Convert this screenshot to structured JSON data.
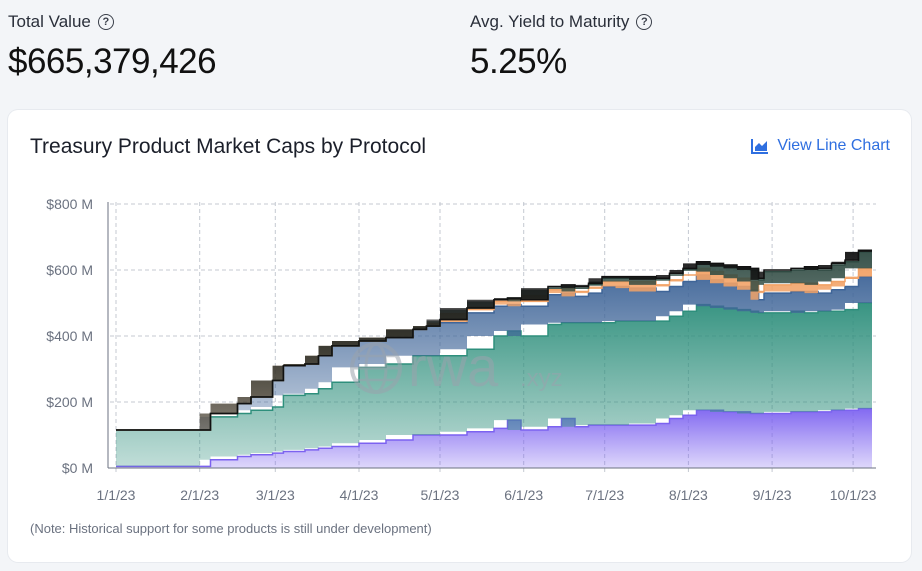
{
  "stats": {
    "total_value_label": "Total Value",
    "total_value": "$665,379,426",
    "yield_label": "Avg. Yield to Maturity",
    "yield_value": "5.25%"
  },
  "card": {
    "title": "Treasury Product Market Caps by Protocol",
    "view_line_label": "View Line Chart",
    "note": "(Note: Historical support for some products is still under development)",
    "watermark_brand": "rwa",
    "watermark_suffix": ".xyz"
  },
  "colors": {
    "accent": "#2f6fe0"
  },
  "chart_data": {
    "type": "area",
    "stacked": true,
    "ylim": [
      0,
      800
    ],
    "y_ticks": [
      0,
      200,
      400,
      600,
      800
    ],
    "y_tick_labels": [
      "$0 M",
      "$200 M",
      "$400 M",
      "$600 M",
      "$800 M"
    ],
    "x_tick_labels": [
      "1/1/23",
      "2/1/23",
      "3/1/23",
      "4/1/23",
      "5/1/23",
      "6/1/23",
      "7/1/23",
      "8/1/23",
      "9/1/23",
      "10/1/23"
    ],
    "x_tick_days": [
      0,
      31,
      59,
      90,
      120,
      151,
      181,
      212,
      243,
      273
    ],
    "x_max_day": 280,
    "grid": true,
    "x": [
      0,
      20,
      31,
      35,
      45,
      50,
      58,
      62,
      70,
      75,
      80,
      90,
      100,
      110,
      115,
      120,
      130,
      140,
      145,
      150,
      160,
      165,
      170,
      175,
      180,
      185,
      190,
      200,
      205,
      210,
      215,
      220,
      225,
      230,
      235,
      238,
      240,
      250,
      255,
      260,
      265,
      270,
      275,
      280
    ],
    "series": [
      {
        "color": "#7c62f0",
        "values": [
          5,
          5,
          5,
          25,
          35,
          40,
          45,
          50,
          55,
          60,
          65,
          75,
          85,
          100,
          100,
          100,
          110,
          120,
          145,
          115,
          125,
          150,
          125,
          130,
          130,
          130,
          130,
          135,
          150,
          160,
          175,
          175,
          170,
          170,
          165,
          165,
          165,
          170,
          170,
          170,
          175,
          175,
          180,
          180
        ]
      },
      {
        "color": "#2e8f7c",
        "values": [
          110,
          110,
          110,
          130,
          130,
          135,
          140,
          170,
          170,
          180,
          195,
          230,
          230,
          240,
          240,
          240,
          250,
          280,
          270,
          285,
          310,
          290,
          315,
          310,
          310,
          315,
          315,
          310,
          310,
          315,
          320,
          315,
          315,
          310,
          310,
          305,
          305,
          305,
          300,
          305,
          300,
          305,
          320,
          320
        ]
      },
      {
        "color": "#3f6598",
        "values": [
          0,
          0,
          0,
          10,
          30,
          40,
          80,
          90,
          90,
          100,
          110,
          80,
          80,
          80,
          90,
          100,
          110,
          90,
          80,
          90,
          90,
          90,
          80,
          90,
          110,
          105,
          100,
          90,
          90,
          90,
          90,
          80,
          75,
          70,
          65,
          40,
          60,
          60,
          65,
          55,
          65,
          70,
          80,
          80
        ]
      },
      {
        "color": "#f2a266",
        "values": [
          0,
          0,
          0,
          0,
          0,
          0,
          0,
          0,
          0,
          0,
          0,
          0,
          0,
          0,
          0,
          5,
          10,
          15,
          15,
          15,
          15,
          15,
          15,
          15,
          15,
          15,
          20,
          20,
          20,
          20,
          20,
          25,
          25,
          25,
          25,
          25,
          25,
          25,
          25,
          25,
          25,
          25,
          25,
          25
        ]
      },
      {
        "color": "#2f4a42",
        "values": [
          0,
          0,
          0,
          0,
          0,
          0,
          0,
          0,
          0,
          0,
          0,
          0,
          0,
          0,
          0,
          5,
          5,
          5,
          5,
          5,
          5,
          5,
          10,
          10,
          10,
          10,
          10,
          15,
          15,
          15,
          15,
          20,
          25,
          30,
          35,
          35,
          40,
          40,
          45,
          45,
          50,
          50,
          50,
          50
        ]
      },
      {
        "color": "#111111",
        "values": [
          0,
          0,
          0,
          0,
          0,
          0,
          0,
          0,
          0,
          0,
          0,
          0,
          0,
          0,
          0,
          0,
          0,
          0,
          0,
          0,
          5,
          5,
          5,
          5,
          5,
          5,
          5,
          5,
          5,
          5,
          5,
          5,
          5,
          5,
          5,
          5,
          5,
          5,
          5,
          5,
          5,
          5,
          5,
          5
        ]
      }
    ]
  }
}
